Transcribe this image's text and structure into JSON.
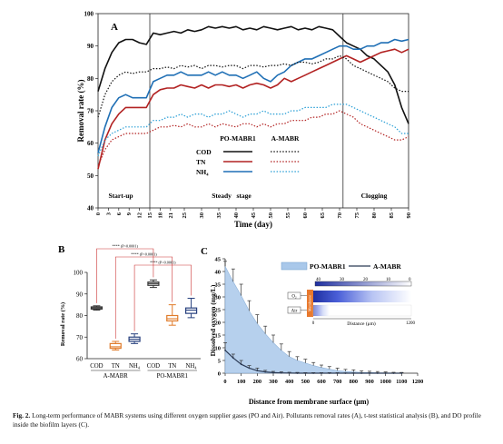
{
  "caption": {
    "label": "Fig. 2.",
    "text": "Long-term performance of MABR systems using different oxygen supplier gases (PO and Air). Pollutants removal rates (A), t-test statistical analysis (B), and DO profile inside the biofilm layers (C)."
  },
  "colors": {
    "cod": "#111111",
    "tn": "#b22222",
    "nh4": "#1f6fb5",
    "nh4_air": "#2a9fd6",
    "box_cod": "#333333",
    "box_tn": "#e07b2a",
    "box_nh4": "#27407e",
    "area_fill": "#a9c8ea",
    "heat_dark": "#1f2fa0",
    "membrane": "#e8792e"
  },
  "chart_data": [
    {
      "id": "A",
      "type": "line",
      "panel_label": "A",
      "xlabel": "Time (day)",
      "ylabel": "Removal rate (%)",
      "xlim": [
        0,
        90
      ],
      "ylim": [
        40,
        100
      ],
      "xticks": [
        0,
        3,
        6,
        9,
        12,
        15,
        18,
        21,
        25,
        30,
        35,
        40,
        45,
        50,
        55,
        60,
        65,
        70,
        75,
        80,
        85,
        90
      ],
      "yticks": [
        40,
        50,
        60,
        70,
        80,
        90,
        100
      ],
      "phase_lines": [
        15,
        71
      ],
      "phases": [
        {
          "label": "Start-up",
          "x": 6
        },
        {
          "label": "Steady   stage",
          "x": 40
        },
        {
          "label": "Clogging",
          "x": 80
        }
      ],
      "legend": {
        "col1": "PO-MABR1",
        "col2": "A-MABR",
        "rows": [
          "COD",
          "TN",
          "NH₄"
        ]
      },
      "x": [
        0,
        2,
        4,
        6,
        8,
        10,
        12,
        14,
        16,
        18,
        20,
        22,
        24,
        26,
        28,
        30,
        32,
        34,
        36,
        38,
        40,
        42,
        44,
        46,
        48,
        50,
        52,
        54,
        56,
        58,
        60,
        62,
        64,
        66,
        68,
        70,
        72,
        74,
        76,
        78,
        80,
        82,
        84,
        86,
        88,
        90
      ],
      "series": [
        {
          "name": "PO-MABR1 COD",
          "key": "cod",
          "dashed": false,
          "values": [
            76,
            83,
            88,
            91,
            92,
            92,
            91,
            90.5,
            94,
            93.5,
            94,
            94.5,
            94,
            95,
            94.5,
            95,
            96,
            95.5,
            96,
            95.5,
            96,
            95,
            95.5,
            95,
            96,
            95.5,
            95,
            95.5,
            96,
            95,
            95.5,
            95,
            96,
            95.5,
            95,
            93,
            91,
            90,
            89,
            87,
            86,
            84,
            82,
            78,
            71,
            66
          ]
        },
        {
          "name": "PO-MABR1 TN",
          "key": "tn",
          "dashed": false,
          "values": [
            52,
            61,
            66,
            69,
            71,
            71,
            71,
            71,
            75,
            76.5,
            77,
            77,
            78,
            77.5,
            77,
            78,
            77,
            78,
            78,
            77.5,
            78,
            77,
            78,
            78.5,
            78,
            77,
            78,
            80,
            79,
            80,
            81,
            82,
            83,
            84,
            85,
            86,
            87,
            86,
            85,
            86,
            87,
            88,
            88.5,
            89,
            88,
            89
          ]
        },
        {
          "name": "PO-MABR1 NH₄",
          "key": "nh4",
          "dashed": false,
          "values": [
            57,
            65,
            71,
            74,
            75,
            74,
            74,
            74,
            79,
            80,
            81,
            81,
            82,
            81,
            81,
            81,
            82,
            81,
            82,
            81,
            81,
            80,
            81,
            82,
            80,
            79,
            81,
            82,
            84,
            85,
            86,
            86,
            87,
            88,
            89,
            90,
            90,
            89,
            89,
            90,
            90,
            91,
            91,
            92,
            91.5,
            92
          ]
        },
        {
          "name": "A-MABR COD",
          "key": "cod",
          "dashed": true,
          "values": [
            68,
            75,
            79,
            81,
            82,
            81.5,
            82,
            82,
            83,
            83,
            83.5,
            83,
            84,
            83.5,
            84,
            83,
            84,
            84,
            83.5,
            84,
            84,
            83,
            84,
            84,
            83.5,
            84,
            84,
            84.5,
            84,
            85,
            85,
            84.5,
            85,
            86,
            86,
            87,
            86,
            84,
            83,
            82,
            81,
            80,
            79,
            77,
            76,
            76
          ]
        },
        {
          "name": "A-MABR TN",
          "key": "tn",
          "dashed": true,
          "values": [
            53,
            58,
            61,
            62,
            63,
            63,
            63,
            63,
            64,
            65,
            65,
            65.5,
            65,
            66,
            65,
            65,
            66,
            65,
            66,
            65.5,
            65,
            66,
            66,
            65,
            66,
            65,
            66,
            66,
            67,
            67,
            67,
            68,
            68,
            69,
            69,
            70,
            69,
            68,
            66,
            65,
            64,
            63,
            62,
            61,
            61,
            62
          ]
        },
        {
          "name": "A-MABR NH₄",
          "key": "nh4_air",
          "dashed": true,
          "values": [
            56,
            61,
            63,
            64,
            65,
            65,
            65,
            65,
            67,
            67,
            68,
            68,
            69,
            68,
            69,
            69,
            68,
            69,
            69,
            70,
            69,
            68,
            69,
            69,
            70,
            69,
            69,
            69,
            70,
            70,
            71,
            71,
            71,
            71,
            72,
            72,
            72,
            71,
            70,
            69,
            68,
            67,
            66,
            65,
            63,
            63
          ]
        }
      ]
    },
    {
      "id": "B",
      "type": "box",
      "panel_label": "B",
      "ylabel": "Removal rate (%)",
      "ylim": [
        60,
        100
      ],
      "yticks": [
        60,
        70,
        80,
        90,
        100
      ],
      "groups": [
        {
          "name": "A-MABR",
          "boxes": [
            {
              "label": "COD",
              "key": "box_cod",
              "min": 82.5,
              "q1": 83,
              "median": 83.5,
              "q3": 84,
              "max": 84.5
            },
            {
              "label": "TN",
              "key": "box_tn",
              "min": 64,
              "q1": 64.8,
              "median": 65.5,
              "q3": 67,
              "max": 68
            },
            {
              "label": "NH₄",
              "key": "box_nh4",
              "min": 67,
              "q1": 68,
              "median": 69,
              "q3": 70,
              "max": 71.5
            }
          ]
        },
        {
          "name": "PO-MABR1",
          "boxes": [
            {
              "label": "COD",
              "key": "box_cod",
              "min": 93,
              "q1": 94,
              "median": 94.8,
              "q3": 95.5,
              "max": 96.5
            },
            {
              "label": "TN",
              "key": "box_tn",
              "min": 75.5,
              "q1": 77.5,
              "median": 78.5,
              "q3": 80,
              "max": 85
            },
            {
              "label": "NH₄",
              "key": "box_nh4",
              "min": 79,
              "q1": 81,
              "median": 82.5,
              "q3": 83.5,
              "max": 88
            }
          ]
        }
      ],
      "significance": [
        {
          "from": [
            0,
            0
          ],
          "to": [
            1,
            0
          ],
          "text": "**** (P<0.0001)"
        },
        {
          "from": [
            0,
            1
          ],
          "to": [
            1,
            1
          ],
          "text": "**** (P<0.0001)"
        },
        {
          "from": [
            0,
            2
          ],
          "to": [
            1,
            2
          ],
          "text": "**** (P<0.0001)"
        }
      ]
    },
    {
      "id": "C",
      "type": "area",
      "panel_label": "C",
      "xlabel": "Distance from membrane surface (μm)",
      "ylabel": "Dissolved oxygen (mg/L)",
      "xlim": [
        0,
        1200
      ],
      "ylim": [
        0,
        45
      ],
      "xticks": [
        0,
        100,
        200,
        300,
        400,
        500,
        600,
        700,
        800,
        900,
        1000,
        1100,
        1200
      ],
      "yticks": [
        0,
        5,
        10,
        15,
        20,
        25,
        30,
        35,
        40,
        45
      ],
      "legend": [
        "PO-MABR1",
        "A-MABR"
      ],
      "x": [
        0,
        50,
        100,
        150,
        200,
        250,
        300,
        350,
        400,
        450,
        500,
        550,
        600,
        650,
        700,
        750,
        800,
        850,
        900,
        950,
        1000,
        1050,
        1100
      ],
      "series": [
        {
          "name": "PO-MABR1",
          "style": "area",
          "values": [
            42,
            36,
            30.5,
            24.5,
            19.5,
            15.5,
            12,
            9,
            6.5,
            5,
            4,
            3,
            2.2,
            1.6,
            1,
            0.7,
            0.5,
            0.3,
            0.25,
            0.15,
            0.1,
            0.05,
            0
          ],
          "errors": [
            2,
            5,
            4.5,
            4,
            3.5,
            3,
            3,
            2.5,
            2,
            1.5,
            1.5,
            1.2,
            1,
            1,
            1,
            0.8,
            0.8,
            0.6,
            0.5,
            0.5,
            0.4,
            0.3,
            0.3
          ]
        },
        {
          "name": "A-MABR",
          "style": "line",
          "values": [
            9,
            6,
            3.5,
            2,
            1,
            0.5,
            0.2,
            0.1,
            0.05,
            0,
            0,
            0,
            0,
            0,
            0,
            0,
            0,
            0,
            0,
            0,
            0,
            0,
            0
          ],
          "errors": [
            3,
            1.5,
            1.5,
            1,
            1,
            0.6,
            0.5,
            0.4,
            0.3,
            0.3,
            0.2,
            0.2,
            0.2,
            0.2,
            0.2,
            0.1,
            0.1,
            0.1,
            0.1,
            0.1,
            0.1,
            0.1,
            0.1
          ]
        }
      ],
      "inset": {
        "xlabel": "Distance (μm)",
        "top_ticks": [
          "40",
          "30",
          "20",
          "10",
          "0"
        ],
        "rows": [
          "O₂",
          "Air"
        ],
        "membrane_label": "Membrane",
        "axis_ticks": [
          "0",
          "1200"
        ]
      }
    }
  ]
}
